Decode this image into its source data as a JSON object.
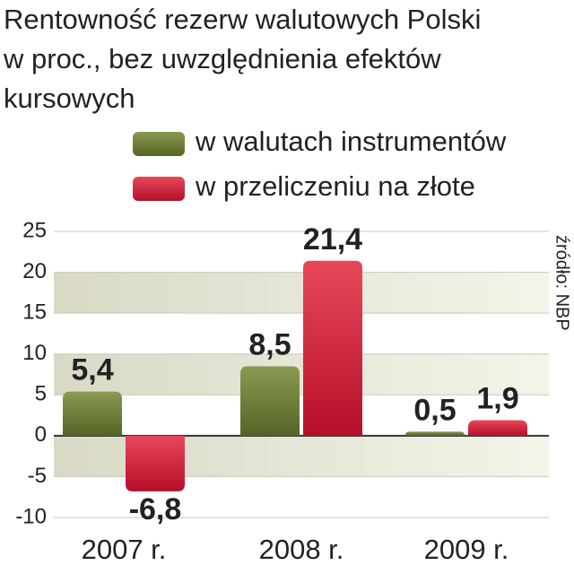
{
  "chart_data": {
    "type": "bar",
    "title": [
      "Rentowność rezerw walutowych Polski",
      "w proc., bez uwzględnienia efektów",
      "kursowych"
    ],
    "source": "źródło: NBP",
    "categories": [
      "2007 r.",
      "2008 r.",
      "2009 r."
    ],
    "series": [
      {
        "name": "w walutach instrumentów",
        "color": "#6b7a34",
        "values": [
          5.4,
          8.5,
          0.5
        ],
        "value_labels": [
          "5,4",
          "8,5",
          "0,5"
        ]
      },
      {
        "name": "w przeliczeniu na złote",
        "color": "#d0203a",
        "values": [
          -6.8,
          21.4,
          1.9
        ],
        "value_labels": [
          "-6,8",
          "21,4",
          "1,9"
        ]
      }
    ],
    "ylim": [
      -10,
      25
    ],
    "yticks": [
      -10,
      -5,
      0,
      5,
      10,
      15,
      20,
      25
    ],
    "grid": true
  }
}
